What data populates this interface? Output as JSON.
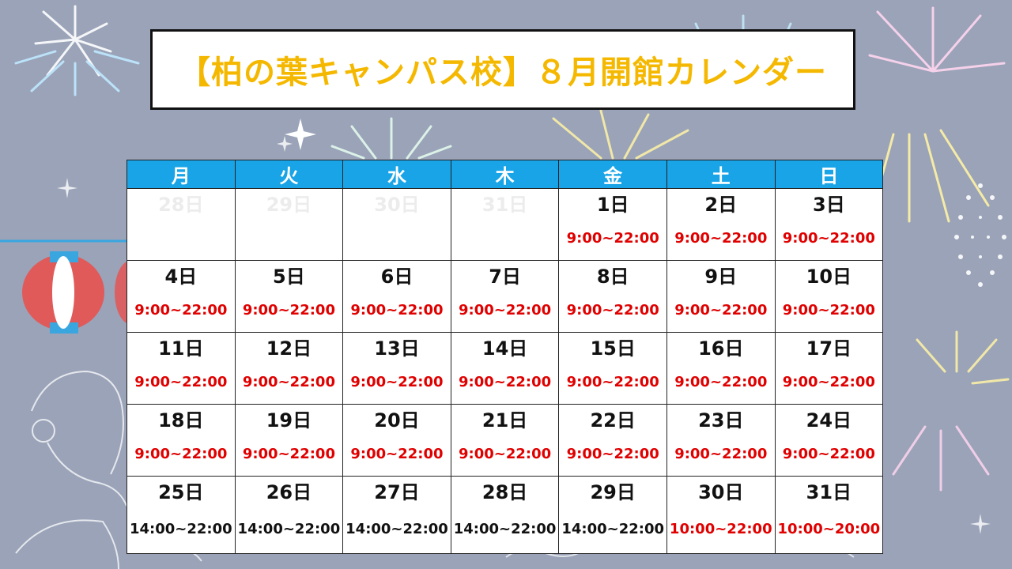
{
  "title": "【柏の葉キャンパス校】８月開館カレンダー",
  "colors": {
    "header_bg": "#18a4e6",
    "title_text": "#f5b800",
    "hours_red": "#e00000",
    "hours_black": "#111111",
    "faded_date": "#ececec"
  },
  "weekdays": [
    "月",
    "火",
    "水",
    "木",
    "金",
    "土",
    "日"
  ],
  "weeks": [
    {
      "days": [
        {
          "date": "28日",
          "hours": "",
          "faded": true
        },
        {
          "date": "29日",
          "hours": "",
          "faded": true
        },
        {
          "date": "30日",
          "hours": "",
          "faded": true
        },
        {
          "date": "31日",
          "hours": "",
          "faded": true
        },
        {
          "date": "1日",
          "hours": "9:00~22:00",
          "color": "red"
        },
        {
          "date": "2日",
          "hours": "9:00~22:00",
          "color": "red"
        },
        {
          "date": "3日",
          "hours": "9:00~22:00",
          "color": "red"
        }
      ]
    },
    {
      "days": [
        {
          "date": "4日",
          "hours": "9:00~22:00",
          "color": "red"
        },
        {
          "date": "5日",
          "hours": "9:00~22:00",
          "color": "red"
        },
        {
          "date": "6日",
          "hours": "9:00~22:00",
          "color": "red"
        },
        {
          "date": "7日",
          "hours": "9:00~22:00",
          "color": "red"
        },
        {
          "date": "8日",
          "hours": "9:00~22:00",
          "color": "red"
        },
        {
          "date": "9日",
          "hours": "9:00~22:00",
          "color": "red"
        },
        {
          "date": "10日",
          "hours": "9:00~22:00",
          "color": "red"
        }
      ]
    },
    {
      "days": [
        {
          "date": "11日",
          "hours": "9:00~22:00",
          "color": "red"
        },
        {
          "date": "12日",
          "hours": "9:00~22:00",
          "color": "red"
        },
        {
          "date": "13日",
          "hours": "9:00~22:00",
          "color": "red"
        },
        {
          "date": "14日",
          "hours": "9:00~22:00",
          "color": "red"
        },
        {
          "date": "15日",
          "hours": "9:00~22:00",
          "color": "red"
        },
        {
          "date": "16日",
          "hours": "9:00~22:00",
          "color": "red"
        },
        {
          "date": "17日",
          "hours": "9:00~22:00",
          "color": "red"
        }
      ]
    },
    {
      "days": [
        {
          "date": "18日",
          "hours": "9:00~22:00",
          "color": "red"
        },
        {
          "date": "19日",
          "hours": "9:00~22:00",
          "color": "red"
        },
        {
          "date": "20日",
          "hours": "9:00~22:00",
          "color": "red"
        },
        {
          "date": "21日",
          "hours": "9:00~22:00",
          "color": "red"
        },
        {
          "date": "22日",
          "hours": "9:00~22:00",
          "color": "red"
        },
        {
          "date": "23日",
          "hours": "9:00~22:00",
          "color": "red"
        },
        {
          "date": "24日",
          "hours": "9:00~22:00",
          "color": "red"
        }
      ]
    },
    {
      "days": [
        {
          "date": "25日",
          "hours": "14:00~22:00",
          "color": "black"
        },
        {
          "date": "26日",
          "hours": "14:00~22:00",
          "color": "black"
        },
        {
          "date": "27日",
          "hours": "14:00~22:00",
          "color": "black"
        },
        {
          "date": "28日",
          "hours": "14:00~22:00",
          "color": "black"
        },
        {
          "date": "29日",
          "hours": "14:00~22:00",
          "color": "black"
        },
        {
          "date": "30日",
          "hours": "10:00~22:00",
          "color": "red"
        },
        {
          "date": "31日",
          "hours": "10:00~20:00",
          "color": "red"
        }
      ]
    }
  ]
}
